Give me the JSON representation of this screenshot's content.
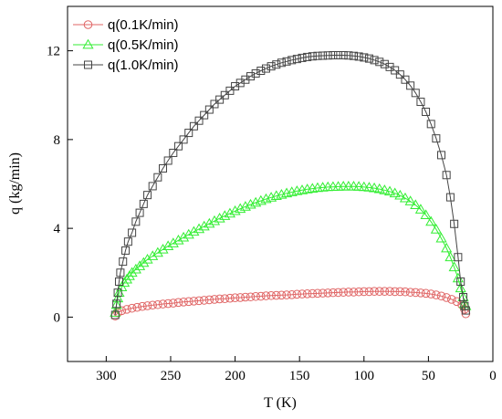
{
  "chart_data": {
    "type": "scatter",
    "xlabel": "T (K)",
    "ylabel": "q (kg/min)",
    "xlim": [
      330,
      0
    ],
    "ylim": [
      -2,
      14
    ],
    "x_ticks": [
      300,
      250,
      200,
      150,
      100,
      50,
      0
    ],
    "x_tick_labels": [
      "300",
      "250",
      "200",
      "150",
      "100",
      "50",
      "0"
    ],
    "y_ticks": [
      0,
      4,
      8,
      12
    ],
    "y_tick_labels": [
      "0",
      "4",
      "8",
      "12"
    ],
    "grid": false,
    "legend_position": "top-left",
    "series": [
      {
        "name": "q(0.1K/min)",
        "marker": "circle",
        "color": "#e06666",
        "x": [
          293,
          291,
          288,
          284,
          280,
          276,
          272,
          268,
          264,
          260,
          256,
          252,
          248,
          244,
          240,
          236,
          232,
          228,
          224,
          220,
          216,
          212,
          208,
          204,
          200,
          196,
          192,
          188,
          184,
          180,
          176,
          172,
          168,
          164,
          160,
          156,
          152,
          148,
          144,
          140,
          136,
          132,
          128,
          124,
          120,
          116,
          112,
          108,
          104,
          100,
          96,
          92,
          88,
          84,
          80,
          76,
          72,
          68,
          64,
          60,
          56,
          52,
          48,
          44,
          40,
          36,
          32,
          28,
          24,
          22,
          21
        ],
        "y": [
          0.05,
          0.2,
          0.29,
          0.35,
          0.4,
          0.44,
          0.48,
          0.51,
          0.54,
          0.56,
          0.59,
          0.61,
          0.63,
          0.66,
          0.68,
          0.7,
          0.72,
          0.74,
          0.76,
          0.78,
          0.8,
          0.82,
          0.83,
          0.85,
          0.87,
          0.88,
          0.9,
          0.91,
          0.93,
          0.94,
          0.96,
          0.97,
          0.98,
          0.99,
          1.0,
          1.01,
          1.03,
          1.04,
          1.05,
          1.06,
          1.07,
          1.08,
          1.09,
          1.1,
          1.11,
          1.12,
          1.13,
          1.13,
          1.14,
          1.15,
          1.15,
          1.16,
          1.16,
          1.16,
          1.16,
          1.15,
          1.15,
          1.14,
          1.12,
          1.11,
          1.09,
          1.07,
          1.04,
          1.0,
          0.95,
          0.88,
          0.8,
          0.7,
          0.55,
          0.35,
          0.15
        ]
      },
      {
        "name": "q(0.5K/min)",
        "marker": "triangle",
        "color": "#33ee33",
        "x": [
          293,
          292,
          291,
          290,
          288,
          286,
          284,
          282,
          280,
          277,
          274,
          271,
          268,
          264,
          260,
          256,
          252,
          248,
          244,
          240,
          236,
          232,
          228,
          224,
          220,
          216,
          212,
          208,
          204,
          200,
          196,
          192,
          188,
          184,
          180,
          176,
          172,
          168,
          164,
          160,
          156,
          152,
          148,
          144,
          140,
          136,
          132,
          128,
          124,
          120,
          116,
          112,
          108,
          104,
          100,
          96,
          92,
          88,
          84,
          80,
          76,
          72,
          68,
          64,
          60,
          56,
          52,
          48,
          44,
          40,
          36,
          33,
          30,
          27,
          25,
          23,
          22,
          21
        ],
        "y": [
          0.2,
          0.55,
          0.85,
          1.1,
          1.35,
          1.55,
          1.7,
          1.85,
          2.0,
          2.15,
          2.3,
          2.45,
          2.6,
          2.75,
          2.9,
          3.05,
          3.2,
          3.33,
          3.46,
          3.59,
          3.72,
          3.85,
          3.97,
          4.09,
          4.21,
          4.33,
          4.45,
          4.56,
          4.67,
          4.78,
          4.88,
          4.98,
          5.07,
          5.16,
          5.24,
          5.32,
          5.39,
          5.46,
          5.52,
          5.58,
          5.63,
          5.68,
          5.72,
          5.76,
          5.79,
          5.82,
          5.84,
          5.86,
          5.87,
          5.88,
          5.89,
          5.89,
          5.89,
          5.88,
          5.86,
          5.84,
          5.81,
          5.77,
          5.72,
          5.66,
          5.58,
          5.48,
          5.36,
          5.22,
          5.05,
          4.85,
          4.6,
          4.3,
          3.95,
          3.55,
          3.1,
          2.7,
          2.25,
          1.75,
          1.3,
          0.9,
          0.6,
          0.5
        ]
      },
      {
        "name": "q(1.0K/min)",
        "marker": "square",
        "color": "#444444",
        "x": [
          293,
          292,
          291,
          290,
          289,
          287,
          285,
          283,
          280,
          277,
          274,
          271,
          268,
          264,
          260,
          256,
          252,
          248,
          244,
          240,
          236,
          232,
          228,
          224,
          220,
          216,
          212,
          208,
          204,
          200,
          196,
          192,
          188,
          184,
          180,
          176,
          172,
          168,
          164,
          160,
          156,
          152,
          148,
          144,
          140,
          136,
          132,
          128,
          124,
          120,
          116,
          112,
          108,
          104,
          100,
          96,
          92,
          88,
          84,
          80,
          76,
          72,
          68,
          64,
          60,
          56,
          52,
          48,
          44,
          40,
          36,
          33,
          30,
          27,
          25,
          23,
          22,
          21
        ],
        "y": [
          0.1,
          0.6,
          1.1,
          1.6,
          2.0,
          2.5,
          3.0,
          3.4,
          3.8,
          4.3,
          4.7,
          5.1,
          5.5,
          5.9,
          6.3,
          6.7,
          7.05,
          7.4,
          7.7,
          8.0,
          8.3,
          8.6,
          8.85,
          9.1,
          9.35,
          9.6,
          9.8,
          10.0,
          10.2,
          10.4,
          10.55,
          10.7,
          10.85,
          10.98,
          11.1,
          11.2,
          11.3,
          11.38,
          11.46,
          11.52,
          11.58,
          11.63,
          11.68,
          11.72,
          11.75,
          11.77,
          11.78,
          11.79,
          11.8,
          11.8,
          11.8,
          11.79,
          11.77,
          11.74,
          11.7,
          11.65,
          11.58,
          11.5,
          11.4,
          11.27,
          11.12,
          10.93,
          10.7,
          10.43,
          10.1,
          9.7,
          9.25,
          8.7,
          8.05,
          7.3,
          6.4,
          5.4,
          4.2,
          2.7,
          1.6,
          0.9,
          0.5,
          0.3
        ]
      }
    ]
  }
}
